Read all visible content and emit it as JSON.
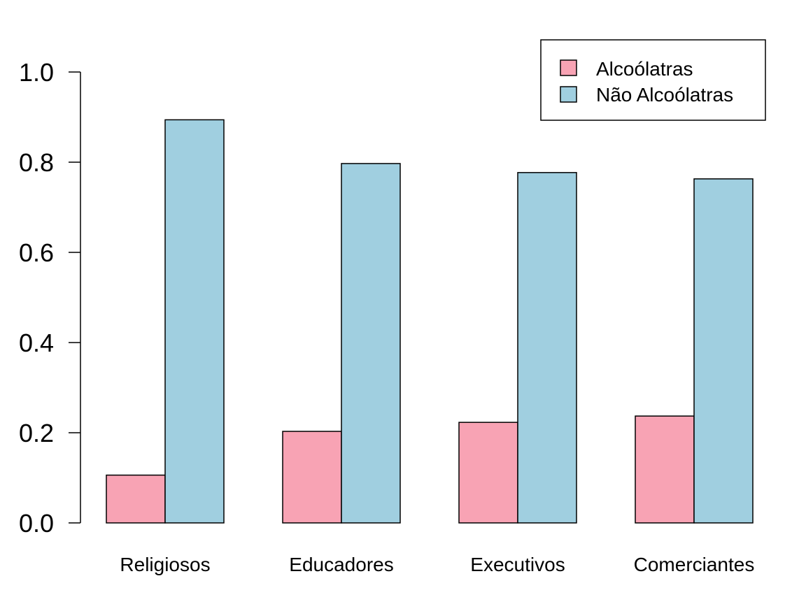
{
  "chart_data": {
    "type": "bar",
    "categories": [
      "Religiosos",
      "Educadores",
      "Executivos",
      "Comerciantes"
    ],
    "series": [
      {
        "name": "Alcoólatras",
        "color": "#F8A3B4",
        "values": [
          0.106,
          0.203,
          0.223,
          0.237
        ]
      },
      {
        "name": "Não Alcoólatras",
        "color": "#A0CFE0",
        "values": [
          0.894,
          0.797,
          0.777,
          0.763
        ]
      }
    ],
    "yticks": [
      "0.0",
      "0.2",
      "0.4",
      "0.6",
      "0.8",
      "1.0"
    ],
    "ylim": [
      0,
      1
    ],
    "title": "",
    "xlabel": "",
    "ylabel": "",
    "legend_position": "top-right",
    "grid": false
  }
}
